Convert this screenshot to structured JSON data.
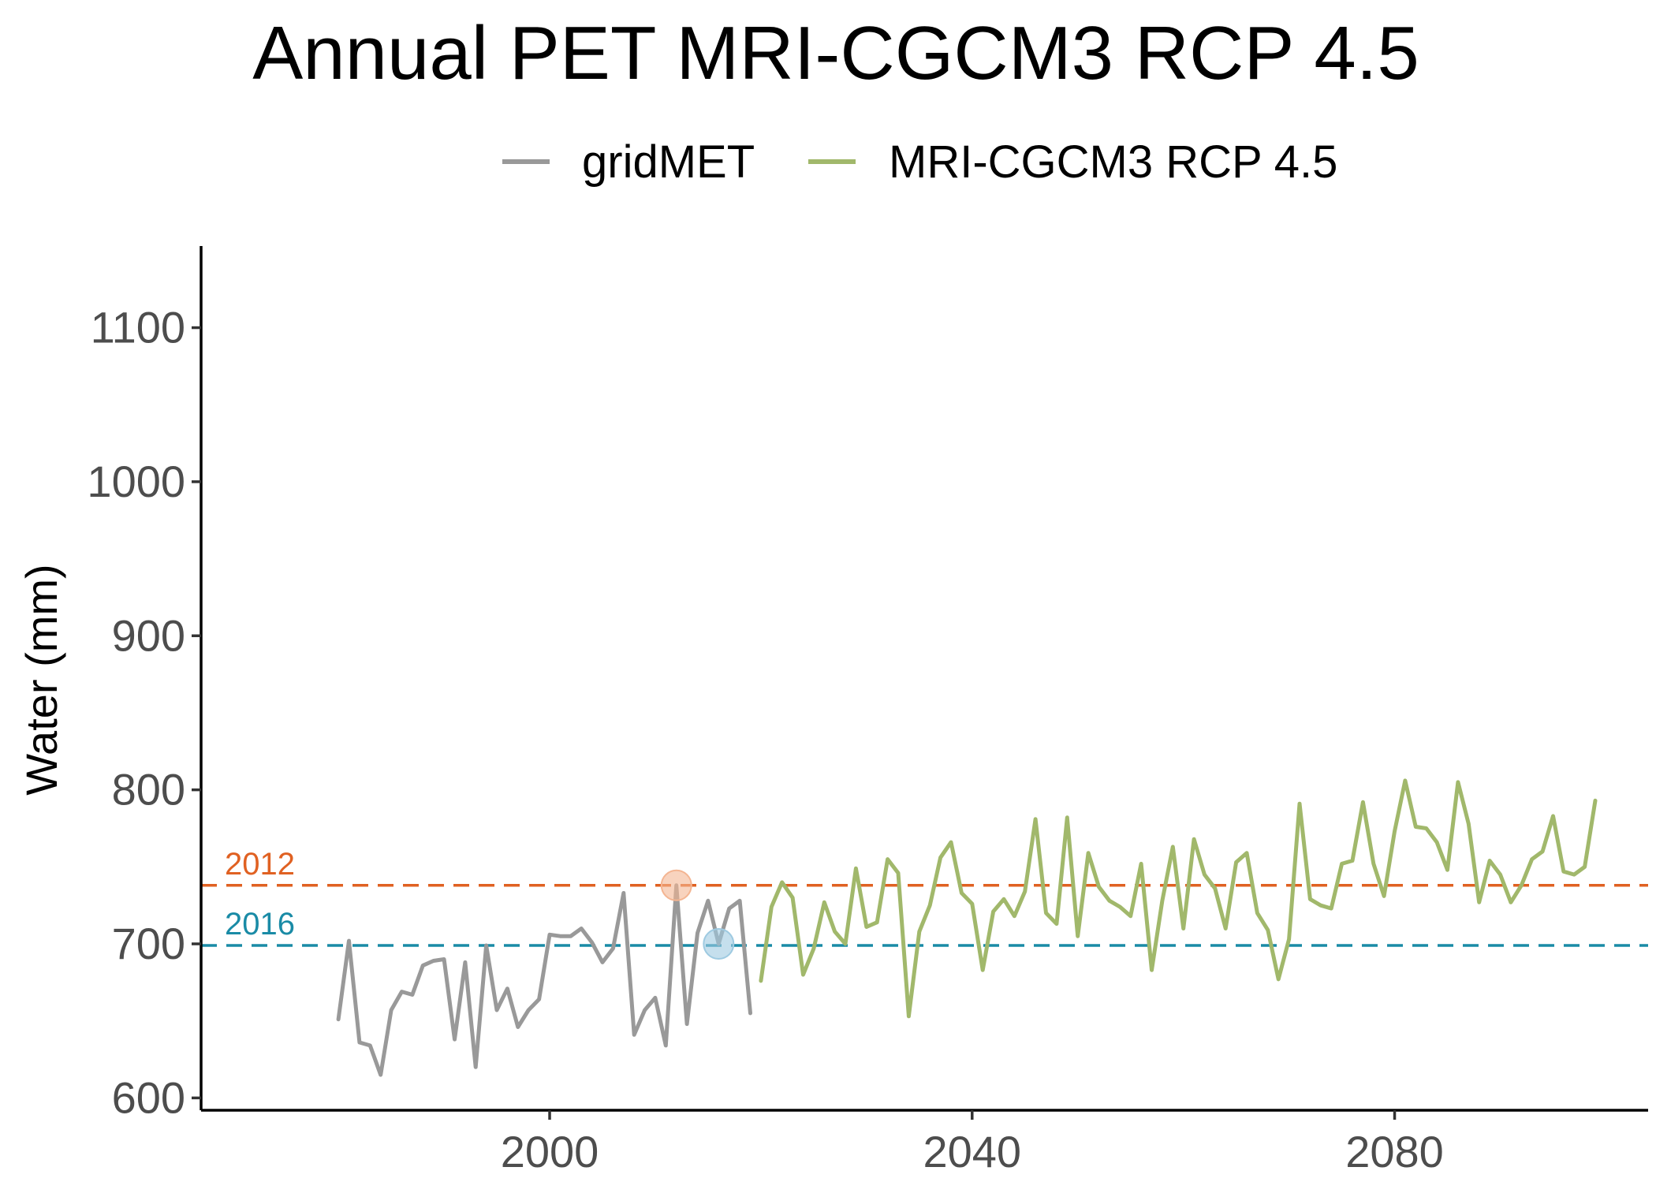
{
  "chart_data": {
    "type": "line",
    "title": "Annual PET MRI-CGCM3 RCP 4.5",
    "xlabel": "",
    "ylabel": "Water (mm)",
    "xlim": [
      1967,
      2104
    ],
    "ylim": [
      592,
      1153
    ],
    "x_ticks": [
      2000,
      2040,
      2080
    ],
    "y_ticks": [
      600,
      700,
      800,
      900,
      1000,
      1100
    ],
    "grid": false,
    "legend": {
      "position": "top"
    },
    "series": [
      {
        "name": "gridMET",
        "color": "#999999",
        "x": [
          1980,
          1981,
          1982,
          1983,
          1984,
          1985,
          1986,
          1987,
          1988,
          1989,
          1990,
          1991,
          1992,
          1993,
          1994,
          1995,
          1996,
          1997,
          1998,
          1999,
          2000,
          2001,
          2002,
          2003,
          2004,
          2005,
          2006,
          2007,
          2008,
          2009,
          2010,
          2011,
          2012,
          2013,
          2014,
          2015,
          2016,
          2017,
          2018,
          2019
        ],
        "values": [
          651,
          702,
          636,
          634,
          615,
          657,
          669,
          667,
          686,
          689,
          690,
          638,
          688,
          620,
          699,
          657,
          671,
          646,
          657,
          664,
          706,
          705,
          705,
          710,
          701,
          688,
          697,
          733,
          641,
          657,
          665,
          634,
          738,
          648,
          707,
          728,
          700,
          723,
          728,
          655
        ]
      },
      {
        "name": "MRI-CGCM3 RCP 4.5",
        "color": "#a1b86b",
        "x": [
          2020,
          2021,
          2022,
          2023,
          2024,
          2025,
          2026,
          2027,
          2028,
          2029,
          2030,
          2031,
          2032,
          2033,
          2034,
          2035,
          2036,
          2037,
          2038,
          2039,
          2040,
          2041,
          2042,
          2043,
          2044,
          2045,
          2046,
          2047,
          2048,
          2049,
          2050,
          2051,
          2052,
          2053,
          2054,
          2055,
          2056,
          2057,
          2058,
          2059,
          2060,
          2061,
          2062,
          2063,
          2064,
          2065,
          2066,
          2067,
          2068,
          2069,
          2070,
          2071,
          2072,
          2073,
          2074,
          2075,
          2076,
          2077,
          2078,
          2079,
          2080,
          2081,
          2082,
          2083,
          2084,
          2085,
          2086,
          2087,
          2088,
          2089,
          2090,
          2091,
          2092,
          2093,
          2094,
          2095,
          2096,
          2097,
          2098,
          2099
        ],
        "values": [
          676,
          724,
          740,
          730,
          680,
          697,
          727,
          708,
          700,
          749,
          711,
          714,
          755,
          746,
          653,
          708,
          725,
          756,
          766,
          733,
          726,
          683,
          721,
          729,
          718,
          734,
          781,
          720,
          713,
          782,
          705,
          759,
          737,
          728,
          724,
          718,
          752,
          683,
          728,
          763,
          710,
          768,
          745,
          736,
          710,
          753,
          759,
          720,
          709,
          677,
          703,
          791,
          729,
          725,
          723,
          752,
          754,
          792,
          752,
          731,
          773,
          806,
          776,
          775,
          766,
          748,
          805,
          778,
          727,
          754,
          745,
          727,
          738,
          755,
          760,
          783,
          747,
          745,
          750,
          793
        ]
      }
    ],
    "reference_lines": [
      {
        "label": "2012",
        "value": 738,
        "color": "#e06122"
      },
      {
        "label": "2016",
        "value": 699,
        "color": "#1a8ba6"
      }
    ],
    "highlight_points": [
      {
        "x": 2012,
        "y": 738,
        "color": "#f4b592"
      },
      {
        "x": 2016,
        "y": 700,
        "color": "#9ecae1"
      }
    ]
  }
}
